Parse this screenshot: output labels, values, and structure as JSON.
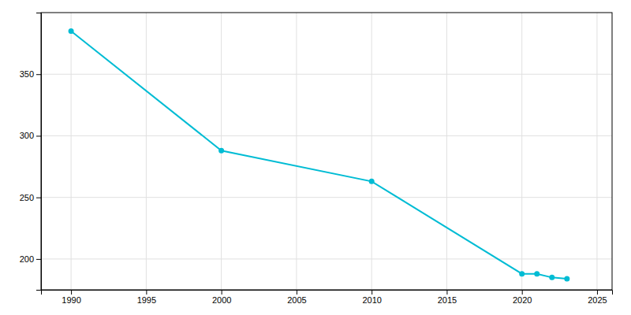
{
  "chart_data": {
    "type": "line",
    "x": [
      1990,
      2000,
      2010,
      2020,
      2021,
      2022,
      2023
    ],
    "values": [
      385,
      288,
      263,
      188,
      188,
      185,
      184
    ],
    "color": "#00BCD4",
    "marker": "circle",
    "xlim": [
      1988,
      2026
    ],
    "ylim": [
      175,
      400
    ],
    "xticks": [
      1990,
      1995,
      2000,
      2005,
      2010,
      2015,
      2020,
      2025
    ],
    "yticks": [
      200,
      250,
      300,
      350
    ],
    "grid": true
  }
}
